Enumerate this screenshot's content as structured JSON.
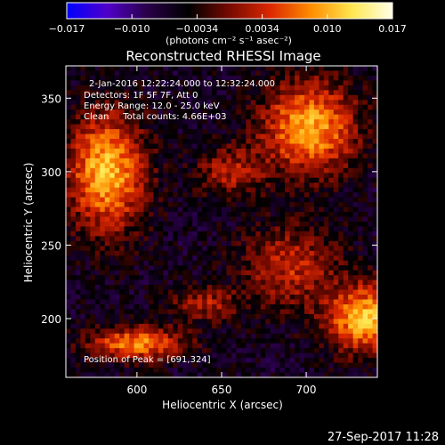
{
  "chart_data": {
    "type": "heatmap",
    "title": "Reconstructed RHESSI Image",
    "xlabel": "Heliocentric X (arcsec)",
    "ylabel": "Heliocentric Y (arcsec)",
    "xlim": [
      558,
      742
    ],
    "ylim": [
      160,
      372
    ],
    "xticks": [
      600,
      650,
      700
    ],
    "yticks": [
      200,
      250,
      300,
      350
    ],
    "colorbar": {
      "label": "(photons cm⁻² s⁻¹ asec⁻²)",
      "range": [
        -0.017,
        0.017
      ],
      "ticks": [
        "−0.017",
        "−0.010",
        "−0.0034",
        "0.0034",
        "0.010",
        "0.017"
      ],
      "colormap": [
        "#0000ff",
        "#5000c8",
        "#280046",
        "#000000",
        "#780a00",
        "#dc2800",
        "#ff8c00",
        "#ffe650",
        "#ffffe6"
      ]
    },
    "annotations": [
      "2-Jan-2016 12:22:24.000 to 12:32:24.000",
      "Detectors: 1F 5F 7F, Att 0",
      "Energy Range: 12.0 - 25.0 keV",
      "Clean     Total counts: 4.66E+03"
    ],
    "peak_label": "Position of Peak = [691,324]",
    "sources": [
      {
        "x": 582,
        "y": 300,
        "amp": 0.017,
        "sx": 16,
        "sy": 28
      },
      {
        "x": 702,
        "y": 330,
        "amp": 0.016,
        "sx": 20,
        "sy": 22
      },
      {
        "x": 735,
        "y": 200,
        "amp": 0.017,
        "sx": 16,
        "sy": 16
      },
      {
        "x": 690,
        "y": 235,
        "amp": 0.009,
        "sx": 20,
        "sy": 20
      },
      {
        "x": 640,
        "y": 210,
        "amp": 0.008,
        "sx": 14,
        "sy": 8
      },
      {
        "x": 600,
        "y": 183,
        "amp": 0.014,
        "sx": 20,
        "sy": 8
      },
      {
        "x": 655,
        "y": 300,
        "amp": 0.008,
        "sx": 14,
        "sy": 12
      }
    ],
    "background": -0.006,
    "timestamp": "27-Sep-2017 11:28"
  }
}
